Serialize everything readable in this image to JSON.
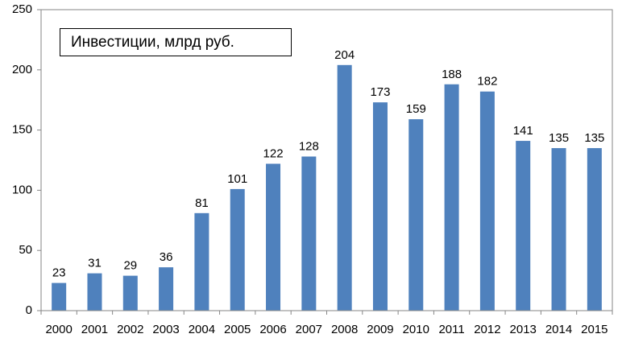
{
  "chart_data": {
    "type": "bar",
    "title": "",
    "xlabel": "",
    "ylabel": "",
    "categories": [
      "2000",
      "2001",
      "2002",
      "2003",
      "2004",
      "2005",
      "2006",
      "2007",
      "2008",
      "2009",
      "2010",
      "2011",
      "2012",
      "2013",
      "2014",
      "2015"
    ],
    "series": [
      {
        "name": "Инвестиции, млрд руб.",
        "values": [
          23,
          31,
          29,
          36,
          81,
          101,
          122,
          128,
          204,
          173,
          159,
          188,
          182,
          141,
          135,
          135
        ],
        "color": "#4F81BD"
      }
    ],
    "ylim": [
      0,
      250
    ],
    "yticks": [
      "0",
      "50",
      "100",
      "150",
      "200",
      "250"
    ],
    "data_labels": true,
    "grid": false,
    "legend": "top-left, boxed"
  }
}
